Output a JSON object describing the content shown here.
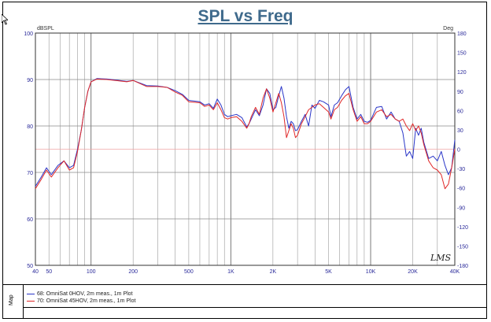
{
  "chart_data": {
    "type": "line",
    "title": "SPL vs Freq",
    "ylabel_left": "dBSPL",
    "ylabel_right": "Deg",
    "xscale": "log",
    "xlim": [
      40,
      40000
    ],
    "ylim": [
      50,
      100
    ],
    "ylim_right": [
      -180,
      180
    ],
    "grid": true,
    "x_ticks": [
      {
        "v": 40,
        "label": "40"
      },
      {
        "v": 50,
        "label": "50"
      },
      {
        "v": 100,
        "label": "100"
      },
      {
        "v": 200,
        "label": "200"
      },
      {
        "v": 500,
        "label": "500"
      },
      {
        "v": 1000,
        "label": "1K"
      },
      {
        "v": 2000,
        "label": "2K"
      },
      {
        "v": 5000,
        "label": "5K"
      },
      {
        "v": 10000,
        "label": "10K"
      },
      {
        "v": 20000,
        "label": "20K"
      },
      {
        "v": 40000,
        "label": "40K"
      }
    ],
    "y_ticks": [
      "100",
      "90",
      "80",
      "70",
      "60",
      "50"
    ],
    "y_ticks_right": [
      "180",
      "150",
      "120",
      "90",
      "60",
      "30",
      "0",
      "-30",
      "-60",
      "-90",
      "-120",
      "-150",
      "-180"
    ],
    "watermark": "LMS",
    "series": [
      {
        "name": "68: OmniSat 0HOV, 2m meas., 1m Plot",
        "color": "#2a36c8",
        "points": [
          [
            40,
            67
          ],
          [
            44,
            69
          ],
          [
            48,
            71
          ],
          [
            52,
            69.5
          ],
          [
            58,
            71.5
          ],
          [
            64,
            72.5
          ],
          [
            70,
            71
          ],
          [
            75,
            71.5
          ],
          [
            80,
            75
          ],
          [
            85,
            79
          ],
          [
            90,
            84
          ],
          [
            95,
            87.5
          ],
          [
            100,
            89.5
          ],
          [
            110,
            90.2
          ],
          [
            130,
            90.1
          ],
          [
            150,
            89.9
          ],
          [
            180,
            89.6
          ],
          [
            200,
            89.8
          ],
          [
            250,
            88.7
          ],
          [
            300,
            88.6
          ],
          [
            350,
            88.3
          ],
          [
            400,
            87.6
          ],
          [
            450,
            86.8
          ],
          [
            500,
            85.5
          ],
          [
            600,
            85.2
          ],
          [
            650,
            84.5
          ],
          [
            700,
            84.8
          ],
          [
            750,
            83.8
          ],
          [
            800,
            85.8
          ],
          [
            850,
            84.5
          ],
          [
            900,
            82.5
          ],
          [
            950,
            82
          ],
          [
            1000,
            82.2
          ],
          [
            1100,
            82.5
          ],
          [
            1200,
            81.8
          ],
          [
            1300,
            79.8
          ],
          [
            1350,
            80.5
          ],
          [
            1400,
            81.5
          ],
          [
            1500,
            83.5
          ],
          [
            1600,
            82.2
          ],
          [
            1700,
            84.5
          ],
          [
            1800,
            88
          ],
          [
            1900,
            87
          ],
          [
            2000,
            83.5
          ],
          [
            2100,
            84
          ],
          [
            2200,
            86.5
          ],
          [
            2300,
            88.5
          ],
          [
            2400,
            86
          ],
          [
            2500,
            82
          ],
          [
            2600,
            79.5
          ],
          [
            2700,
            81
          ],
          [
            2800,
            80.5
          ],
          [
            2900,
            79
          ],
          [
            3000,
            79.2
          ],
          [
            3200,
            81
          ],
          [
            3400,
            82.5
          ],
          [
            3600,
            80
          ],
          [
            3800,
            84.5
          ],
          [
            4000,
            83.8
          ],
          [
            4300,
            85.5
          ],
          [
            4600,
            85.2
          ],
          [
            5000,
            84.5
          ],
          [
            5200,
            82
          ],
          [
            5500,
            84.5
          ],
          [
            5800,
            85
          ],
          [
            6200,
            86.5
          ],
          [
            6600,
            87.8
          ],
          [
            7000,
            88.5
          ],
          [
            7500,
            84
          ],
          [
            8000,
            81.5
          ],
          [
            8500,
            82.5
          ],
          [
            9000,
            81
          ],
          [
            9500,
            80.8
          ],
          [
            10000,
            81.2
          ],
          [
            11000,
            84
          ],
          [
            12000,
            84.2
          ],
          [
            13000,
            81.5
          ],
          [
            14000,
            83
          ],
          [
            15000,
            81.5
          ],
          [
            16000,
            81
          ],
          [
            17000,
            78.5
          ],
          [
            18000,
            73.5
          ],
          [
            19000,
            74.5
          ],
          [
            20000,
            73
          ],
          [
            21000,
            79.5
          ],
          [
            22000,
            78
          ],
          [
            23000,
            79.5
          ],
          [
            24000,
            76.5
          ],
          [
            26000,
            73
          ],
          [
            28000,
            73.5
          ],
          [
            30000,
            72.5
          ],
          [
            32000,
            74.5
          ],
          [
            34000,
            71.5
          ],
          [
            36000,
            69.5
          ],
          [
            38000,
            71
          ],
          [
            40000,
            77
          ]
        ]
      },
      {
        "name": "70: OmniSat 45HOV, 2m meas., 1m Plot",
        "color": "#e02828",
        "points": [
          [
            40,
            66.5
          ],
          [
            44,
            68.5
          ],
          [
            48,
            70.5
          ],
          [
            52,
            69
          ],
          [
            58,
            71
          ],
          [
            64,
            72.5
          ],
          [
            70,
            70.5
          ],
          [
            75,
            71
          ],
          [
            80,
            74.5
          ],
          [
            85,
            79
          ],
          [
            90,
            84
          ],
          [
            95,
            87.5
          ],
          [
            100,
            89.5
          ],
          [
            110,
            90.1
          ],
          [
            130,
            90
          ],
          [
            150,
            89.8
          ],
          [
            180,
            89.5
          ],
          [
            200,
            89.8
          ],
          [
            250,
            88.5
          ],
          [
            300,
            88.5
          ],
          [
            350,
            88.3
          ],
          [
            400,
            87.3
          ],
          [
            450,
            86.6
          ],
          [
            500,
            85.2
          ],
          [
            600,
            85
          ],
          [
            650,
            84.2
          ],
          [
            700,
            84.5
          ],
          [
            750,
            83.5
          ],
          [
            800,
            85
          ],
          [
            850,
            83.5
          ],
          [
            900,
            81.8
          ],
          [
            950,
            81.5
          ],
          [
            1000,
            81.8
          ],
          [
            1100,
            82
          ],
          [
            1200,
            81
          ],
          [
            1300,
            79.5
          ],
          [
            1350,
            80.5
          ],
          [
            1400,
            82
          ],
          [
            1500,
            84
          ],
          [
            1600,
            82.5
          ],
          [
            1700,
            86
          ],
          [
            1800,
            88
          ],
          [
            1900,
            86
          ],
          [
            2000,
            83
          ],
          [
            2100,
            85
          ],
          [
            2200,
            87
          ],
          [
            2300,
            85
          ],
          [
            2400,
            82
          ],
          [
            2500,
            77.5
          ],
          [
            2600,
            79
          ],
          [
            2700,
            80.5
          ],
          [
            2800,
            79.5
          ],
          [
            2900,
            77.5
          ],
          [
            3000,
            78
          ],
          [
            3200,
            80.5
          ],
          [
            3400,
            82
          ],
          [
            3600,
            83.5
          ],
          [
            3800,
            84
          ],
          [
            4000,
            84.5
          ],
          [
            4300,
            84.8
          ],
          [
            4600,
            84
          ],
          [
            5000,
            83
          ],
          [
            5200,
            81.5
          ],
          [
            5500,
            83.5
          ],
          [
            5800,
            84
          ],
          [
            6200,
            85.5
          ],
          [
            6600,
            86.5
          ],
          [
            7000,
            87
          ],
          [
            7500,
            83.5
          ],
          [
            8000,
            81
          ],
          [
            8500,
            82
          ],
          [
            9000,
            80.5
          ],
          [
            9500,
            80.5
          ],
          [
            10000,
            81
          ],
          [
            11000,
            83
          ],
          [
            12000,
            83.5
          ],
          [
            13000,
            82
          ],
          [
            14000,
            82.5
          ],
          [
            15000,
            81.5
          ],
          [
            16000,
            81
          ],
          [
            17000,
            81.5
          ],
          [
            18000,
            80
          ],
          [
            19000,
            79
          ],
          [
            20000,
            80.5
          ],
          [
            21000,
            79
          ],
          [
            22000,
            80
          ],
          [
            23000,
            78.5
          ],
          [
            24000,
            76
          ],
          [
            26000,
            72.5
          ],
          [
            28000,
            71
          ],
          [
            30000,
            70.5
          ],
          [
            32000,
            69.5
          ],
          [
            34000,
            66.5
          ],
          [
            36000,
            67.5
          ],
          [
            38000,
            71
          ],
          [
            40000,
            75
          ]
        ]
      }
    ]
  },
  "legend": {
    "map_label": "Map",
    "items": [
      {
        "label": "68: OmniSat 0HOV, 2m meas., 1m Plot",
        "color": "#2a36c8"
      },
      {
        "label": "70: OmniSat 45HOV, 2m meas., 1m Plot",
        "color": "#e02828"
      }
    ]
  }
}
